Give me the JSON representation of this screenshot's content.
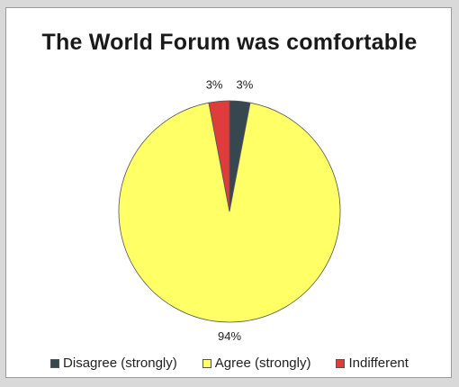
{
  "chart_data": {
    "type": "pie",
    "title": "The World Forum was comfortable",
    "categories": [
      "Disagree (strongly)",
      "Agree (strongly)",
      "Indifferent"
    ],
    "values": [
      3,
      94,
      3
    ],
    "labels": [
      "3%",
      "94%",
      "3%"
    ],
    "colors": [
      "#37474f",
      "#ffff66",
      "#e03c3c"
    ],
    "slice_order": [
      "Disagree (strongly)",
      "Agree (strongly)",
      "Indifferent"
    ],
    "start_angle_deg": 0,
    "direction": "clockwise",
    "legend_position": "bottom"
  }
}
